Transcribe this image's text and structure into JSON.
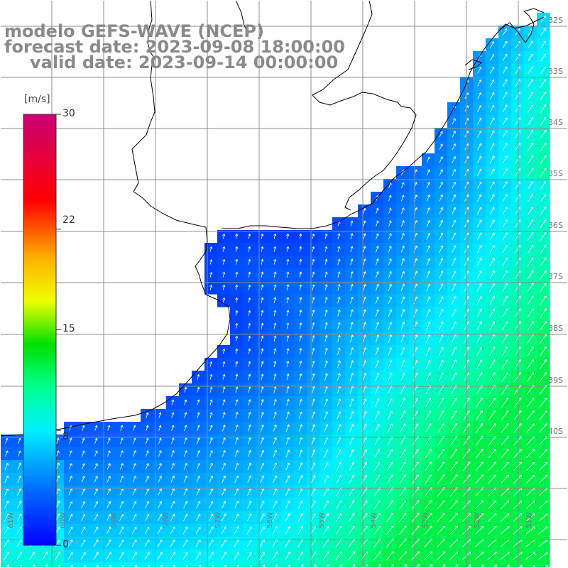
{
  "title": {
    "line1": "modelo GEFS-WAVE (NCEP)",
    "line2": "forecast date: 2023-09-08 18:00:00",
    "line3": "valid date: 2023-09-14 00:00:00"
  },
  "colorbar": {
    "unit": "[m/s]",
    "ticks": [
      "30",
      "22",
      "15",
      "8",
      "0"
    ],
    "tick_values": [
      30,
      22,
      15,
      8,
      0
    ],
    "min": 0,
    "max": 30,
    "stops": [
      {
        "v": 0,
        "color": "#0000ff"
      },
      {
        "v": 4,
        "color": "#0070ff"
      },
      {
        "v": 8,
        "color": "#00f0ff"
      },
      {
        "v": 11,
        "color": "#00ff90"
      },
      {
        "v": 14,
        "color": "#00e000"
      },
      {
        "v": 17,
        "color": "#f0ff00"
      },
      {
        "v": 20,
        "color": "#ffb000"
      },
      {
        "v": 24,
        "color": "#ff0000"
      },
      {
        "v": 30,
        "color": "#cc0077"
      }
    ]
  },
  "axes": {
    "lat_labels": [
      "32S",
      "33S",
      "34S",
      "35S",
      "36S",
      "37S",
      "38S",
      "39S",
      "40S"
    ],
    "lat_values": [
      32,
      33,
      34,
      35,
      36,
      37,
      38,
      39,
      40
    ],
    "lon_labels": [
      "61W",
      "60W",
      "59W",
      "58W",
      "57W",
      "56W",
      "55W",
      "54W",
      "53W",
      "52W",
      "51W"
    ],
    "lon_values": [
      61,
      60,
      59,
      58,
      57,
      56,
      55,
      54,
      53,
      52,
      51
    ]
  },
  "colors": {
    "land": "#ffffff",
    "coastline": "#000000",
    "grid": "#8c8c8c",
    "arrow": "#ffffff",
    "label": "#808080"
  }
}
